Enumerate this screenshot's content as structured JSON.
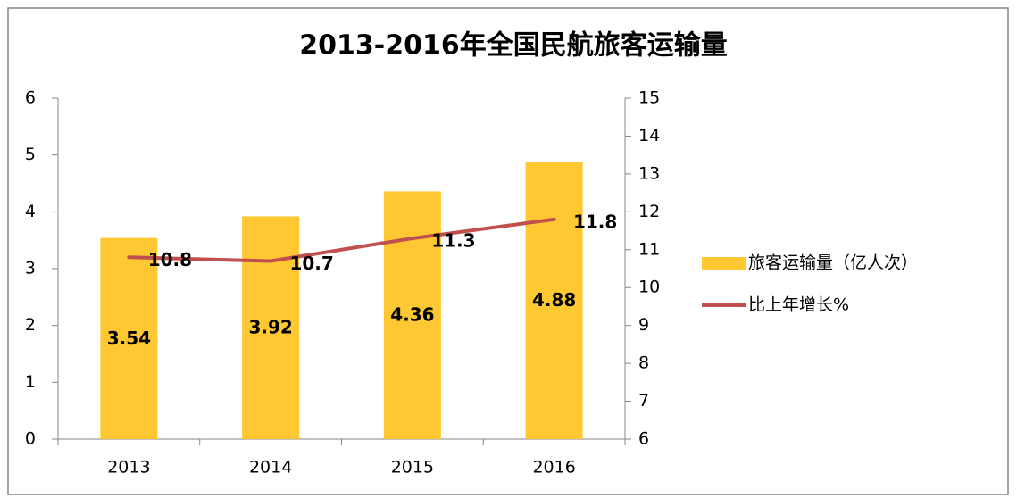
{
  "chart_data": {
    "type": "bar",
    "title": "2013-2016年全国民航旅客运输量",
    "categories": [
      "2013",
      "2014",
      "2015",
      "2016"
    ],
    "series": [
      {
        "name": "旅客运输量（亿人次）",
        "type": "bar",
        "color": "#FFC832",
        "values": [
          3.54,
          3.92,
          4.36,
          4.88
        ]
      },
      {
        "name": "比上年增长%",
        "type": "line",
        "axis": "y2",
        "color": "#C0504D",
        "values": [
          10.8,
          10.7,
          11.3,
          11.8
        ]
      }
    ],
    "ylim": [
      0,
      6
    ],
    "yticks": [
      0,
      1,
      2,
      3,
      4,
      5,
      6
    ],
    "y2lim": [
      6,
      15
    ],
    "y2ticks": [
      6,
      7,
      8,
      9,
      10,
      11,
      12,
      13,
      14,
      15
    ],
    "legend": "right",
    "grid": false
  }
}
